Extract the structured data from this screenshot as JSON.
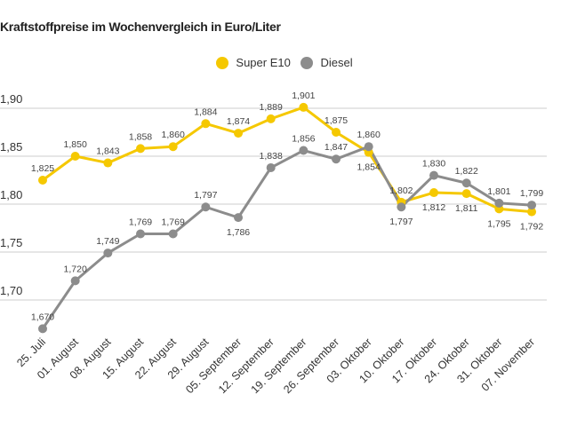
{
  "chart_data": {
    "type": "line",
    "title": "Kraftstoffpreise im Wochenvergleich in Euro/Liter",
    "xlabel": "",
    "ylabel": "",
    "categories": [
      "25. Juli",
      "01. August",
      "08. August",
      "15. August",
      "22. August",
      "29. August",
      "05. September",
      "12. September",
      "19. September",
      "26. September",
      "03. Oktober",
      "10. Oktober",
      "17. Oktober",
      "24. Oktober",
      "31. Oktober",
      "07. November"
    ],
    "series": [
      {
        "name": "Super E10",
        "color": "#f5c800",
        "values": [
          1.825,
          1.85,
          1.843,
          1.858,
          1.86,
          1.884,
          1.874,
          1.889,
          1.901,
          1.875,
          1.854,
          1.802,
          1.812,
          1.811,
          1.795,
          1.792
        ]
      },
      {
        "name": "Diesel",
        "color": "#8c8c8c",
        "values": [
          1.67,
          1.72,
          1.749,
          1.769,
          1.769,
          1.797,
          1.786,
          1.838,
          1.856,
          1.847,
          1.86,
          1.797,
          1.83,
          1.822,
          1.801,
          1.799
        ]
      }
    ],
    "yticks": [
      "1,70",
      "1,75",
      "1,80",
      "1,85",
      "1,90"
    ],
    "ytick_values": [
      1.7,
      1.75,
      1.8,
      1.85,
      1.9
    ],
    "ylim": [
      1.65,
      1.93
    ],
    "grid": true,
    "legend": "top-center",
    "decimal_separator": ","
  }
}
